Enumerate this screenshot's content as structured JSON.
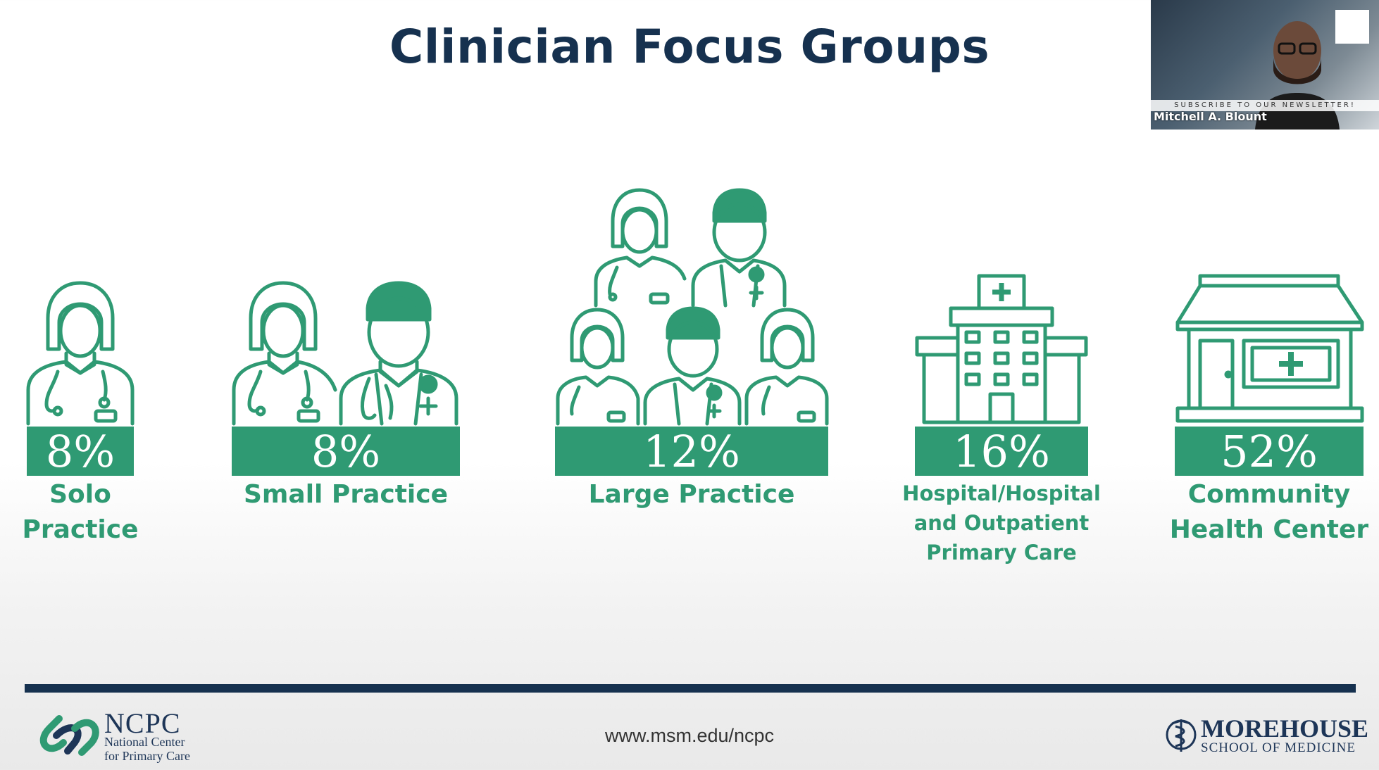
{
  "slide": {
    "title": "Clinician Focus Groups",
    "footer_url": "www.msm.edu/ncpc"
  },
  "groups": [
    {
      "percent": "8%",
      "label_lines": [
        "Solo",
        "Practice"
      ],
      "icon": "single-doctor-icon"
    },
    {
      "percent": "8%",
      "label_lines": [
        "Small Practice"
      ],
      "icon": "two-doctors-icon"
    },
    {
      "percent": "12%",
      "label_lines": [
        "Large Practice"
      ],
      "icon": "doctor-team-icon"
    },
    {
      "percent": "16%",
      "label_lines": [
        "Hospital/Hospital",
        "and Outpatient",
        "Primary Care"
      ],
      "icon": "hospital-icon"
    },
    {
      "percent": "52%",
      "label_lines": [
        "Community",
        "Health Center"
      ],
      "icon": "clinic-storefront-icon"
    }
  ],
  "logos": {
    "ncpc_name": "NCPC",
    "ncpc_sub_1": "National Center",
    "ncpc_sub_2": "for Primary Care",
    "msm_name": "MOREHOUSE",
    "msm_sub": "SCHOOL OF MEDICINE"
  },
  "video": {
    "speaker_name": "Mitchell A. Blount",
    "banner_text": "SUBSCRIBE TO OUR NEWSLETTER!"
  },
  "colors": {
    "accent_green": "#2f9a73",
    "title_navy": "#16314f"
  }
}
